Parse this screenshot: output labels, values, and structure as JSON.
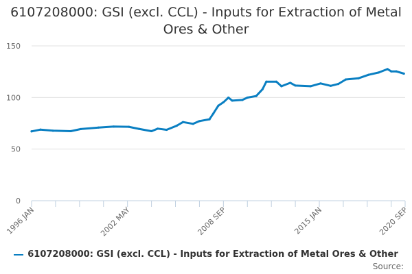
{
  "chart_data": {
    "type": "line",
    "title": "6107208000: GSI (excl. CCL) - Inputs for Extraction of Metal Ores & Other",
    "xlabel": "",
    "ylabel": "",
    "ylim": [
      0,
      150
    ],
    "yticks": [
      "0",
      "50",
      "100",
      "150"
    ],
    "xlim": [
      "1996-01",
      "2020-09"
    ],
    "xtick_labels": [
      "1996 JAN",
      "2002 MAY",
      "2008 SEP",
      "2015 JAN",
      "2020 SEP"
    ],
    "grid": true,
    "legend_position": "bottom",
    "color": "#0a7fc2",
    "series": [
      {
        "name": "6107208000: GSI (excl. CCL) - Inputs for Extraction of Metal Ores & Other",
        "x": [
          "1996-01",
          "1996-08",
          "1997-06",
          "1998-08",
          "1999-04",
          "2000-06",
          "2001-06",
          "2002-06",
          "2003-02",
          "2003-12",
          "2004-05",
          "2004-12",
          "2005-08",
          "2006-01",
          "2006-09",
          "2007-02",
          "2007-10",
          "2008-01",
          "2008-05",
          "2008-09",
          "2009-01",
          "2009-04",
          "2009-12",
          "2010-04",
          "2010-11",
          "2011-04",
          "2011-07",
          "2012-03",
          "2012-07",
          "2013-02",
          "2013-06",
          "2014-06",
          "2015-02",
          "2015-10",
          "2016-04",
          "2016-10",
          "2017-08",
          "2018-04",
          "2018-12",
          "2019-07",
          "2019-10",
          "2020-02",
          "2020-08"
        ],
        "values": [
          67.2,
          68.9,
          67.8,
          67.4,
          69.4,
          70.9,
          71.8,
          71.6,
          69.6,
          67.4,
          69.8,
          68.7,
          72.7,
          76.2,
          74.5,
          77.1,
          78.9,
          84.4,
          92.1,
          95.4,
          99.9,
          97.0,
          97.6,
          99.9,
          101.4,
          108.0,
          115.3,
          115.3,
          110.9,
          114.2,
          111.6,
          110.9,
          113.6,
          111.3,
          113.1,
          117.5,
          118.6,
          122.0,
          124.2,
          127.5,
          125.3,
          125.3,
          123.1
        ]
      }
    ]
  },
  "source_label": "Source:"
}
